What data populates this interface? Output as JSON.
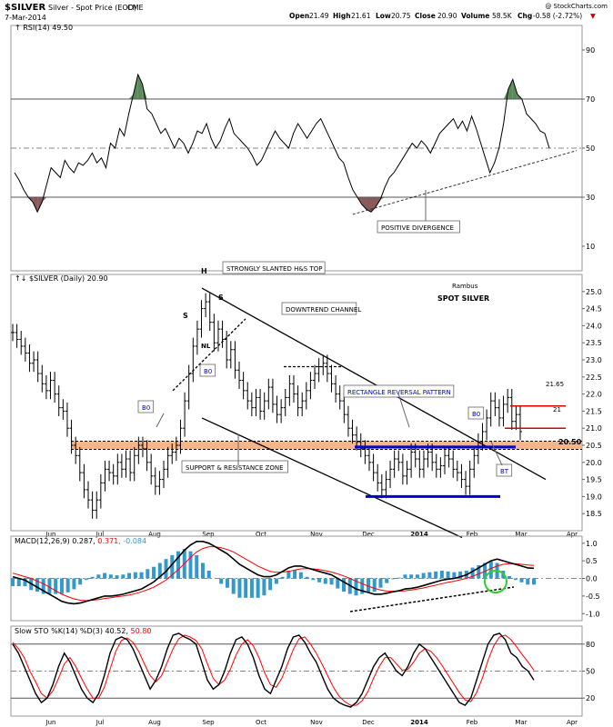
{
  "header": {
    "symbol": "$SILVER",
    "name": "Silver - Spot Price (EOD)",
    "exchange": "CME",
    "date": "7-Mar-2014",
    "credit": "@ StockCharts.com",
    "open_label": "Open",
    "open": "21.49",
    "high_label": "High",
    "high": "21.61",
    "low_label": "Low",
    "low": "20.75",
    "close_label": "Close",
    "close": "20.90",
    "vol_label": "Volume",
    "volume": "58.5K",
    "chg_label": "Chg",
    "chg": "-0.58 (-2.72%)"
  },
  "colors": {
    "price_bar": "#000000",
    "macd_line": "#000000",
    "macd_signal": "#ff0000",
    "macd_hist": "#3399cc",
    "sto_k": "#000000",
    "sto_d": "#ff0000",
    "zone_fill": "#f4a46a",
    "rect_lines": "#0000cc",
    "target_lines": "#dd0000",
    "rsi_overbought": "#5a8a5a",
    "rsi_oversold": "#8a5a5a"
  },
  "chart_data": [
    {
      "type": "line",
      "panel": "rsi",
      "title": "RSI(14) 49.50",
      "ylim": [
        0,
        100
      ],
      "yticks": [
        10,
        30,
        50,
        70,
        90
      ],
      "levels": [
        30,
        50,
        70
      ],
      "series": [
        {
          "name": "RSI(14)",
          "values": [
            40,
            37,
            33,
            30,
            28,
            24,
            28,
            35,
            42,
            40,
            38,
            45,
            42,
            40,
            44,
            43,
            45,
            48,
            44,
            46,
            42,
            52,
            50,
            58,
            55,
            64,
            72,
            80,
            76,
            66,
            64,
            60,
            56,
            58,
            54,
            50,
            54,
            52,
            48,
            52,
            57,
            56,
            60,
            54,
            50,
            53,
            58,
            62,
            56,
            54,
            52,
            50,
            47,
            43,
            45,
            49,
            53,
            57,
            54,
            52,
            50,
            56,
            60,
            57,
            54,
            57,
            60,
            62,
            58,
            54,
            50,
            46,
            44,
            38,
            33,
            30,
            27,
            25,
            24,
            26,
            29,
            34,
            38,
            40,
            43,
            46,
            49,
            52,
            50,
            53,
            51,
            48,
            52,
            56,
            58,
            60,
            62,
            58,
            61,
            57,
            63,
            58,
            52,
            46,
            40,
            44,
            50,
            60,
            74,
            78,
            72,
            70,
            64,
            62,
            60,
            57,
            56,
            50
          ]
        }
      ],
      "annotations": [
        "POSITIVE DIVERGENCE"
      ]
    },
    {
      "type": "bar",
      "panel": "price",
      "title": "$SILVER (Daily) 20.90",
      "xlabel": "",
      "ylabel": "",
      "x_ticks": [
        "Jun",
        "Jul",
        "Aug",
        "Sep",
        "Oct",
        "Nov",
        "Dec",
        "2014",
        "Feb",
        "Mar",
        "Apr"
      ],
      "ylim": [
        18.0,
        25.5
      ],
      "yticks": [
        18.5,
        19.0,
        19.5,
        20.0,
        20.5,
        21.0,
        21.5,
        22.0,
        22.5,
        23.0,
        23.5,
        24.0,
        24.5,
        25.0
      ],
      "series": [
        {
          "name": "$SILVER",
          "values": [
            23.8,
            23.6,
            23.4,
            23.2,
            22.9,
            23.0,
            22.6,
            22.3,
            22.1,
            22.4,
            22.0,
            21.6,
            21.5,
            21.0,
            20.5,
            20.2,
            19.7,
            19.2,
            18.9,
            18.6,
            18.9,
            19.4,
            19.8,
            19.7,
            19.6,
            20.0,
            19.8,
            20.1,
            19.7,
            20.2,
            20.5,
            20.4,
            20.0,
            19.6,
            19.3,
            19.5,
            19.8,
            20.2,
            20.3,
            20.5,
            21.0,
            21.8,
            22.6,
            23.4,
            23.9,
            24.5,
            24.7,
            24.1,
            23.5,
            23.9,
            23.6,
            23.0,
            23.3,
            22.7,
            22.4,
            22.1,
            21.8,
            21.6,
            21.9,
            21.5,
            21.8,
            22.2,
            21.7,
            21.4,
            21.6,
            21.9,
            22.3,
            22.0,
            21.6,
            21.8,
            22.1,
            22.4,
            22.6,
            22.8,
            22.9,
            22.6,
            22.3,
            22.0,
            21.8,
            21.4,
            21.0,
            20.8,
            20.6,
            20.4,
            20.2,
            20.0,
            19.7,
            19.4,
            19.2,
            19.5,
            19.8,
            20.1,
            20.0,
            19.6,
            19.8,
            20.3,
            20.1,
            19.8,
            20.1,
            20.3,
            20.0,
            19.8,
            19.9,
            20.2,
            20.1,
            19.8,
            19.7,
            19.5,
            19.3,
            19.8,
            20.2,
            20.6,
            20.9,
            21.3,
            21.8,
            21.6,
            21.3,
            21.7,
            21.9,
            21.2,
            21.4,
            20.9
          ]
        }
      ],
      "annotations": [
        "H",
        "S",
        "S",
        "NL",
        "B0",
        "B0",
        "B0",
        "BT",
        "STRONGLY SLANTED H&S TOP",
        "DOWNTREND CHANNEL",
        "Rambus",
        "SPOT SILVER",
        "RECTANGLE REVERSAL PATTERN",
        "SUPPORT & RESISTANCE ZONE",
        "20.50",
        "21.65",
        "21"
      ]
    },
    {
      "type": "line",
      "panel": "macd",
      "title": "MACD(12,26,9)",
      "macd_value": "0.287",
      "signal_value": "0.371",
      "hist_value": "-0.084",
      "ylim": [
        -1.2,
        1.2
      ],
      "yticks": [
        -1.0,
        -0.5,
        0.0,
        0.5,
        1.0
      ],
      "series": [
        {
          "name": "MACD",
          "values": [
            0.05,
            0.0,
            -0.05,
            -0.15,
            -0.25,
            -0.35,
            -0.45,
            -0.55,
            -0.65,
            -0.7,
            -0.72,
            -0.7,
            -0.65,
            -0.6,
            -0.55,
            -0.5,
            -0.5,
            -0.48,
            -0.45,
            -0.4,
            -0.35,
            -0.3,
            -0.2,
            -0.1,
            0.05,
            0.2,
            0.4,
            0.6,
            0.8,
            0.95,
            1.05,
            1.05,
            1.0,
            0.9,
            0.8,
            0.7,
            0.55,
            0.4,
            0.3,
            0.2,
            0.1,
            0.05,
            0.05,
            0.1,
            0.2,
            0.3,
            0.35,
            0.35,
            0.3,
            0.25,
            0.2,
            0.15,
            0.1,
            0.0,
            -0.1,
            -0.2,
            -0.3,
            -0.35,
            -0.4,
            -0.45,
            -0.45,
            -0.42,
            -0.38,
            -0.35,
            -0.3,
            -0.28,
            -0.25,
            -0.2,
            -0.15,
            -0.1,
            -0.05,
            -0.02,
            0.0,
            0.05,
            0.1,
            0.2,
            0.3,
            0.4,
            0.5,
            0.55,
            0.5,
            0.45,
            0.4,
            0.35,
            0.3,
            0.29
          ]
        },
        {
          "name": "Signal",
          "values": [
            0.15,
            0.1,
            0.05,
            0.0,
            -0.08,
            -0.15,
            -0.25,
            -0.35,
            -0.45,
            -0.52,
            -0.58,
            -0.62,
            -0.63,
            -0.62,
            -0.6,
            -0.57,
            -0.55,
            -0.52,
            -0.5,
            -0.47,
            -0.43,
            -0.38,
            -0.32,
            -0.25,
            -0.15,
            -0.05,
            0.1,
            0.25,
            0.42,
            0.6,
            0.75,
            0.85,
            0.9,
            0.9,
            0.87,
            0.82,
            0.75,
            0.65,
            0.55,
            0.45,
            0.35,
            0.27,
            0.2,
            0.17,
            0.18,
            0.2,
            0.24,
            0.27,
            0.28,
            0.27,
            0.25,
            0.22,
            0.18,
            0.13,
            0.07,
            0.0,
            -0.08,
            -0.15,
            -0.22,
            -0.28,
            -0.33,
            -0.36,
            -0.37,
            -0.36,
            -0.35,
            -0.33,
            -0.3,
            -0.27,
            -0.23,
            -0.19,
            -0.15,
            -0.11,
            -0.08,
            -0.04,
            0.0,
            0.06,
            0.13,
            0.2,
            0.28,
            0.35,
            0.4,
            0.42,
            0.42,
            0.4,
            0.38,
            0.37
          ]
        }
      ]
    },
    {
      "type": "line",
      "panel": "sto",
      "title": "Slow STO %K(14) %D(3)",
      "k_value": "40.52",
      "d_value": "50.80",
      "ylim": [
        0,
        100
      ],
      "yticks": [
        20,
        50,
        80
      ],
      "levels": [
        20,
        50,
        80
      ],
      "series": [
        {
          "name": "%K",
          "values": [
            80,
            70,
            55,
            40,
            25,
            15,
            20,
            35,
            55,
            70,
            60,
            45,
            30,
            20,
            15,
            25,
            45,
            70,
            85,
            88,
            85,
            75,
            60,
            45,
            30,
            40,
            55,
            75,
            90,
            92,
            88,
            85,
            80,
            60,
            40,
            30,
            35,
            50,
            70,
            85,
            88,
            80,
            65,
            45,
            30,
            25,
            40,
            55,
            75,
            88,
            90,
            82,
            70,
            60,
            45,
            30,
            20,
            15,
            12,
            10,
            15,
            25,
            40,
            55,
            65,
            70,
            60,
            50,
            45,
            55,
            70,
            80,
            75,
            65,
            55,
            45,
            35,
            25,
            15,
            12,
            20,
            40,
            60,
            80,
            90,
            92,
            85,
            70,
            65,
            55,
            50,
            40
          ]
        },
        {
          "name": "%D",
          "values": [
            82,
            75,
            65,
            50,
            38,
            25,
            20,
            28,
            42,
            58,
            65,
            55,
            42,
            30,
            20,
            20,
            32,
            52,
            72,
            84,
            87,
            82,
            72,
            58,
            45,
            38,
            45,
            60,
            75,
            86,
            90,
            88,
            84,
            75,
            58,
            42,
            35,
            40,
            52,
            68,
            80,
            85,
            78,
            65,
            48,
            35,
            32,
            42,
            58,
            74,
            86,
            88,
            80,
            70,
            58,
            45,
            32,
            22,
            16,
            12,
            12,
            17,
            27,
            42,
            55,
            65,
            65,
            58,
            51,
            52,
            60,
            70,
            75,
            72,
            65,
            56,
            46,
            36,
            26,
            18,
            16,
            26,
            42,
            62,
            78,
            88,
            90,
            85,
            77,
            68,
            60,
            51
          ]
        }
      ]
    }
  ]
}
